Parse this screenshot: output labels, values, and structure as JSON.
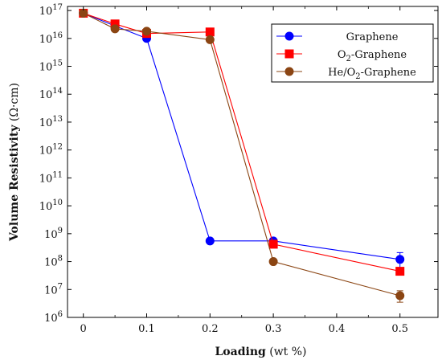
{
  "chart_data": {
    "type": "line",
    "title": "",
    "xlabel": {
      "bold": "Loading",
      "normal": " (wt %)"
    },
    "ylabel": {
      "bold": "Volume Resistivity",
      "normal": " (Ω·cm)"
    },
    "x_ticks": [
      "0",
      "0.1",
      "0.2",
      "0.3",
      "0.4",
      "0.5"
    ],
    "y_scale": "log",
    "y_tick_exponents": [
      6,
      7,
      8,
      9,
      10,
      11,
      12,
      13,
      14,
      15,
      16,
      17
    ],
    "xlim": [
      -0.025,
      0.56
    ],
    "ylim": [
      1000000.0,
      1.4e+17
    ],
    "legend_position": "top-right",
    "series": [
      {
        "name": "Graphene",
        "color": "#0000ff",
        "marker": "circle",
        "x": [
          0,
          0.05,
          0.1,
          0.2,
          0.3,
          0.5
        ],
        "y": [
          8e+16,
          2.8e+16,
          1e+16,
          550000000.0,
          550000000.0,
          120000000.0
        ],
        "error_upper": [
          null,
          null,
          null,
          null,
          null,
          210000000.0
        ],
        "error_lower": [
          null,
          null,
          null,
          null,
          null,
          60000000.0
        ]
      },
      {
        "name": "O₂-Graphene",
        "legend_parts": [
          "O",
          "2",
          "-Graphene"
        ],
        "color": "#ff0000",
        "marker": "square",
        "x": [
          0,
          0.05,
          0.1,
          0.2,
          0.3,
          0.5
        ],
        "y": [
          8e+16,
          3.3e+16,
          1.5e+16,
          1.7e+16,
          420000000.0,
          45000000.0
        ],
        "error_upper": [
          null,
          null,
          null,
          null,
          null,
          null
        ],
        "error_lower": [
          null,
          null,
          null,
          null,
          null,
          null
        ]
      },
      {
        "name": "He/O₂-Graphene",
        "legend_parts": [
          "He/O",
          "2",
          "-Graphene"
        ],
        "color": "#8b4513",
        "marker": "circle",
        "x": [
          0,
          0.05,
          0.1,
          0.2,
          0.3,
          0.5
        ],
        "y": [
          8e+16,
          2.2e+16,
          1.8e+16,
          9000000000000000.0,
          100000000.0,
          6000000.0
        ],
        "error_upper": [
          null,
          null,
          null,
          null,
          null,
          9000000.0
        ],
        "error_lower": [
          null,
          null,
          null,
          null,
          null,
          3500000.0
        ]
      }
    ]
  }
}
